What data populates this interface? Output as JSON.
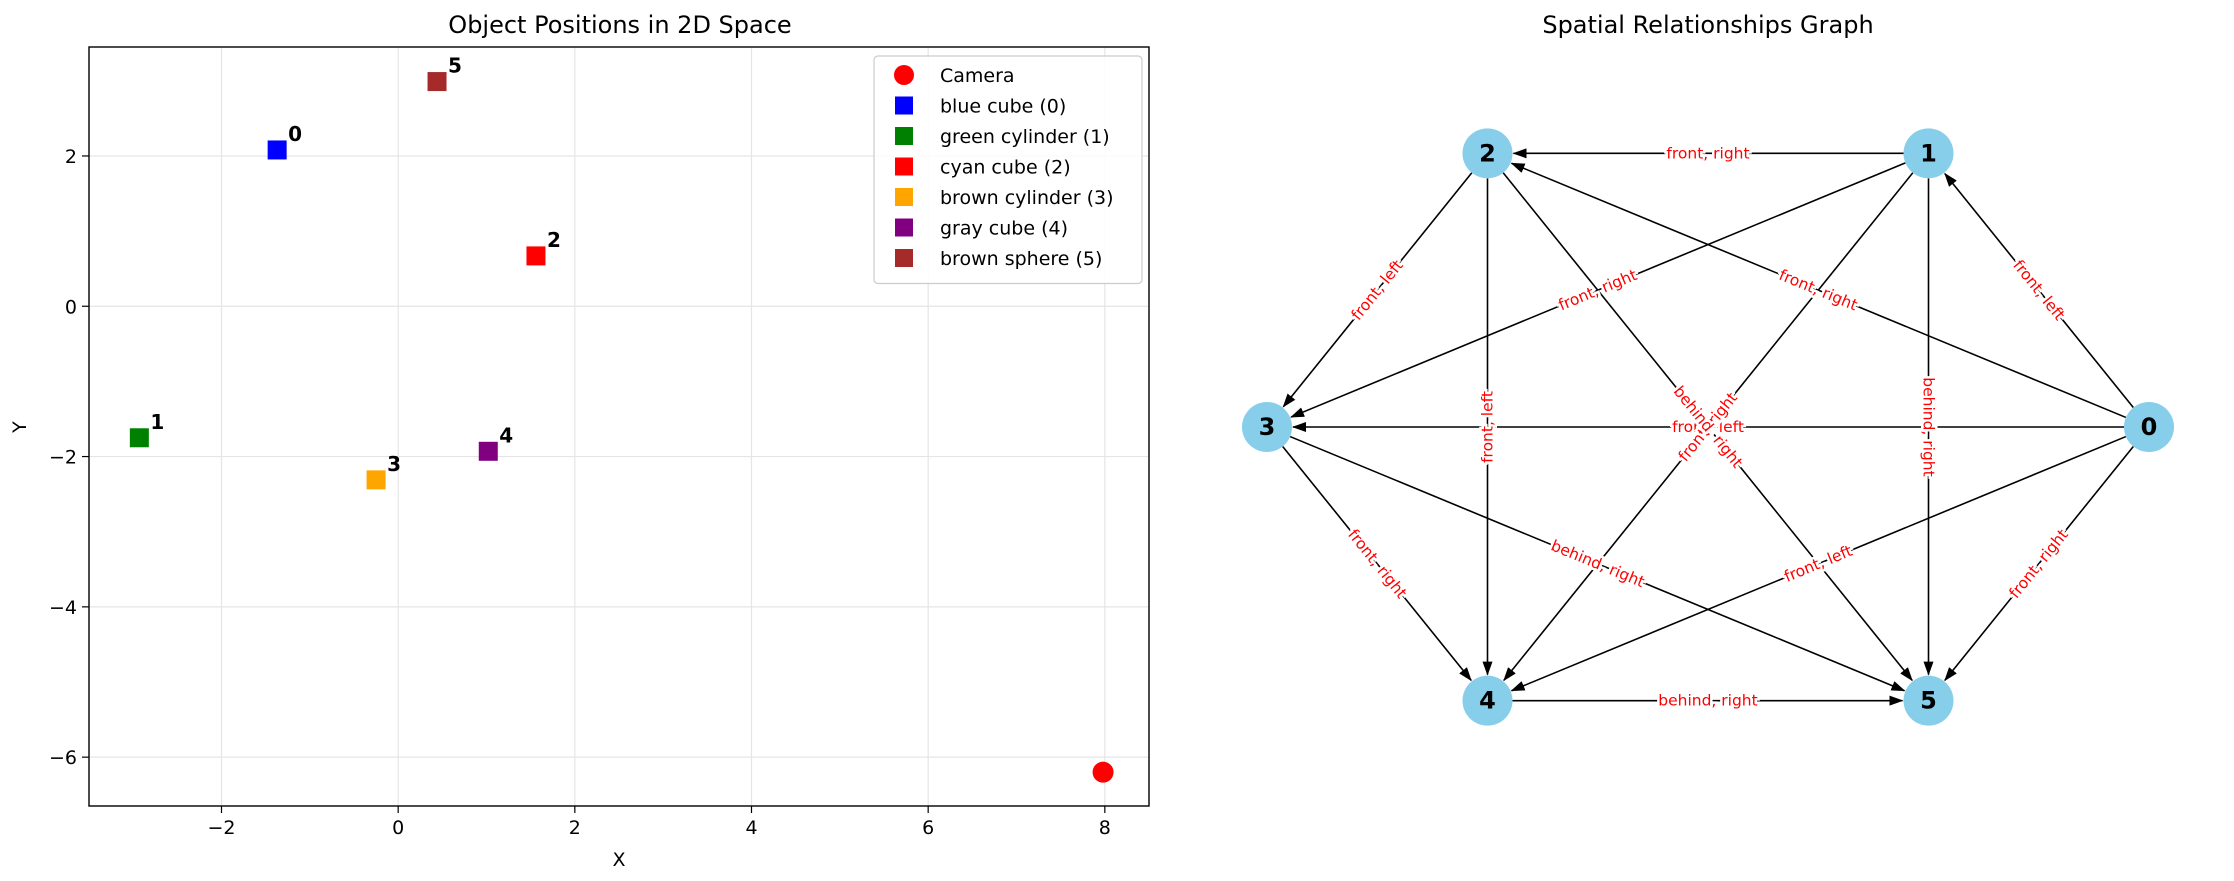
{
  "chart_data": [
    {
      "type": "scatter",
      "title": "Object Positions in 2D Space",
      "xlabel": "X",
      "ylabel": "Y",
      "xlim": [
        -3.5,
        8.5
      ],
      "ylim": [
        -6.65,
        3.45
      ],
      "xticks": [
        -2,
        0,
        2,
        4,
        6,
        8
      ],
      "yticks": [
        2,
        0,
        -2,
        -4,
        -6
      ],
      "xtick_labels": [
        "−2",
        "0",
        "2",
        "4",
        "6",
        "8"
      ],
      "ytick_labels": [
        "2",
        "0",
        "−2",
        "−4",
        "−6"
      ],
      "grid": true,
      "legend_position": "top-right",
      "camera": {
        "name": "Camera",
        "x": 7.98,
        "y": -6.2,
        "color": "#ff0000",
        "marker": "circle"
      },
      "objects": [
        {
          "id": "0",
          "name": "blue cube (0)",
          "x": -1.37,
          "y": 2.08,
          "color": "#0000ff",
          "legend_color": "#0000ff"
        },
        {
          "id": "1",
          "name": "green cylinder (1)",
          "x": -2.93,
          "y": -1.75,
          "color": "#008000",
          "legend_color": "#008000"
        },
        {
          "id": "2",
          "name": "cyan cube (2)",
          "x": 1.56,
          "y": 0.67,
          "color": "#ff0000",
          "legend_color": "#ff0000"
        },
        {
          "id": "3",
          "name": "brown cylinder (3)",
          "x": -0.25,
          "y": -2.31,
          "color": "#ffa500",
          "legend_color": "#ffa500"
        },
        {
          "id": "4",
          "name": "gray cube (4)",
          "x": 1.02,
          "y": -1.93,
          "color": "#800080",
          "legend_color": "#800080"
        },
        {
          "id": "5",
          "name": "brown sphere (5)",
          "x": 0.44,
          "y": 2.99,
          "color": "#a52a2a",
          "legend_color": "#a52a2a"
        }
      ]
    },
    {
      "type": "graph",
      "title": "Spatial Relationships Graph",
      "node_color": "#87ceeb",
      "edge_label_color": "#ff0000",
      "nodes": [
        "0",
        "1",
        "2",
        "3",
        "4",
        "5"
      ],
      "edges": [
        {
          "from": "0",
          "to": "1",
          "label": "front, left"
        },
        {
          "from": "0",
          "to": "2",
          "label": "front, right"
        },
        {
          "from": "0",
          "to": "3",
          "label": "front, left"
        },
        {
          "from": "0",
          "to": "4",
          "label": "front, left"
        },
        {
          "from": "0",
          "to": "5",
          "label": "front, right"
        },
        {
          "from": "1",
          "to": "2",
          "label": "front, right"
        },
        {
          "from": "1",
          "to": "3",
          "label": "front, right"
        },
        {
          "from": "1",
          "to": "4",
          "label": "front, right"
        },
        {
          "from": "1",
          "to": "5",
          "label": "behind, right"
        },
        {
          "from": "2",
          "to": "3",
          "label": "front, left"
        },
        {
          "from": "2",
          "to": "4",
          "label": "front, left"
        },
        {
          "from": "2",
          "to": "5",
          "label": "behind, right"
        },
        {
          "from": "3",
          "to": "4",
          "label": "front, right"
        },
        {
          "from": "3",
          "to": "5",
          "label": "behind, right"
        },
        {
          "from": "4",
          "to": "5",
          "label": "behind, right"
        }
      ]
    }
  ]
}
